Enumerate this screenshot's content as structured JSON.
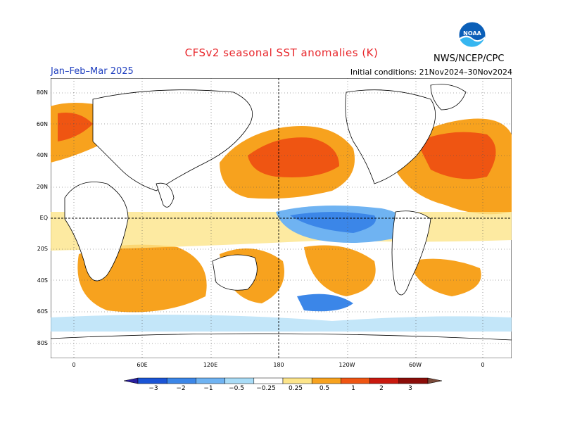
{
  "title": "CFSv2 seasonal SST anomalies (K)",
  "period": "Jan–Feb–Mar 2025",
  "initial_conditions": "Initial conditions: 21Nov2024–30Nov2024",
  "agency": "NWS/NCEP/CPC",
  "logo_text": "NOAA",
  "lat_labels": [
    "80N",
    "60N",
    "40N",
    "20N",
    "EQ",
    "20S",
    "40S",
    "60S",
    "80S"
  ],
  "lon_labels": [
    "0",
    "60E",
    "120E",
    "180",
    "120W",
    "60W",
    "0"
  ],
  "colorbar": {
    "labels": [
      "−3",
      "−2",
      "−1",
      "−0.5",
      "−0.25",
      "0.25",
      "0.5",
      "1",
      "2",
      "3"
    ],
    "colors": [
      "#2a1f9e",
      "#1a54d6",
      "#3b86e8",
      "#6fb3f2",
      "#a9dcf7",
      "#ffffff",
      "#fde58a",
      "#f7a21e",
      "#ef5512",
      "#c9190f",
      "#8b0d09",
      "#7a4a3a"
    ]
  },
  "colors": {
    "title": "#e8262b",
    "period": "#1f3fbf",
    "land": "#ffffff",
    "outline": "#000000"
  }
}
